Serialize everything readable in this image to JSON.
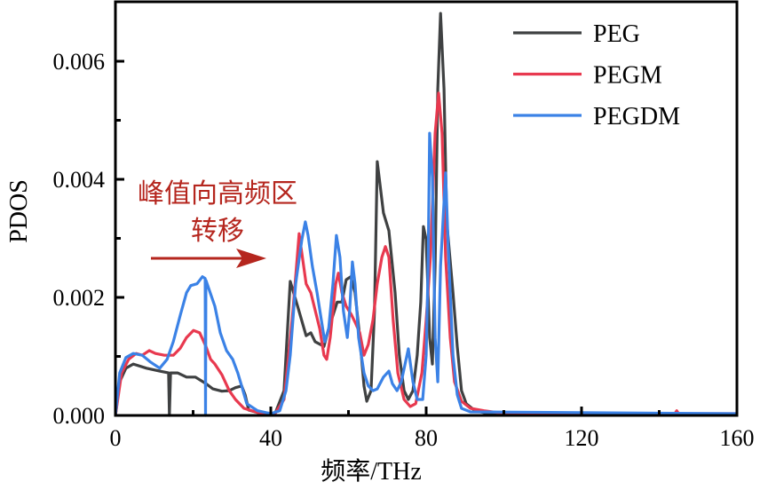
{
  "chart_data": {
    "type": "line",
    "title": "",
    "xlabel": "频率/THz",
    "ylabel": "PDOS",
    "xlim": [
      0,
      160
    ],
    "ylim": [
      0,
      0.007
    ],
    "y_values_scale": 0.001,
    "x_ticks": [
      0,
      40,
      80,
      120,
      160
    ],
    "x_tick_labels": [
      "0",
      "40",
      "80",
      "120",
      "160"
    ],
    "y_ticks": [
      0,
      0.002,
      0.004,
      0.006
    ],
    "y_tick_labels": [
      "0.000",
      "0.002",
      "0.004",
      "0.006"
    ],
    "grid": false,
    "legend_position": "top-right",
    "annotation": {
      "line1": "峰值向高频区",
      "line2": "转移",
      "arrow": "right",
      "color": "#b5261e"
    },
    "series": [
      {
        "name": "PEG",
        "color": "#3f4142",
        "x": [
          0,
          1.1,
          2.7,
          4.6,
          8.0,
          11.4,
          13.7,
          13.9,
          14.2,
          16.0,
          18.3,
          20.6,
          23.3,
          25.1,
          27.4,
          29.3,
          30.9,
          32.5,
          33.4,
          34.3,
          36.6,
          41.1,
          43.4,
          45.0,
          46.9,
          49.1,
          50.3,
          51.4,
          53.7,
          54.9,
          57.1,
          58.3,
          59.4,
          60.6,
          61.7,
          62.9,
          64.0,
          64.7,
          65.8,
          66.7,
          67.4,
          69.0,
          70.4,
          72.0,
          73.1,
          74.3,
          75.4,
          76.6,
          77.7,
          78.6,
          79.3,
          80.0,
          80.9,
          81.6,
          82.3,
          83.0,
          83.7,
          84.6,
          85.3,
          86.9,
          88.0,
          89.1,
          90.3,
          92.6,
          96.0,
          160
        ],
        "values_x1e-3": [
          0,
          0.57,
          0.8,
          0.87,
          0.8,
          0.75,
          0.72,
          0,
          0.72,
          0.72,
          0.65,
          0.65,
          0.54,
          0.45,
          0.41,
          0.42,
          0.47,
          0.5,
          0.35,
          0.09,
          0.05,
          0.03,
          0.42,
          2.27,
          1.85,
          1.35,
          1.4,
          1.25,
          1.17,
          1.47,
          1.92,
          1.92,
          2.3,
          2.35,
          2.08,
          1.32,
          0.5,
          0.24,
          0.42,
          1.77,
          4.3,
          3.43,
          3.13,
          2.08,
          1.02,
          0.42,
          0.27,
          0.42,
          1.02,
          1.92,
          3.2,
          2.98,
          1.32,
          0.87,
          2.53,
          5.53,
          6.81,
          5.53,
          3.28,
          2.08,
          1.17,
          0.42,
          0.2,
          0.08,
          0.03,
          0.02
        ]
      },
      {
        "name": "PEGM",
        "color": "#e8394f",
        "x": [
          0,
          1.6,
          3.4,
          5.3,
          6.9,
          8.7,
          10.3,
          12.6,
          14.9,
          16.7,
          18.3,
          20.1,
          21.7,
          23.3,
          24.5,
          25.6,
          27.4,
          29.3,
          30.9,
          33.1,
          36.6,
          41.1,
          43.4,
          44.6,
          45.7,
          47.3,
          49.1,
          50.3,
          52.6,
          53.7,
          54.4,
          55.3,
          56.7,
          57.4,
          58.3,
          59.4,
          60.8,
          61.7,
          62.9,
          64.0,
          65.1,
          66.3,
          67.4,
          68.6,
          69.5,
          70.4,
          71.5,
          72.7,
          74.3,
          75.9,
          77.3,
          78.9,
          80.0,
          81.1,
          82.3,
          83.2,
          84.1,
          85.0,
          86.2,
          87.3,
          89.1,
          91.4,
          94.9,
          98.3,
          144,
          144.5,
          145,
          160
        ],
        "values_x1e-3": [
          0,
          0.72,
          0.95,
          1.05,
          1.02,
          1.1,
          1.05,
          1.02,
          1.02,
          1.14,
          1.32,
          1.44,
          1.4,
          1.17,
          0.95,
          0.87,
          0.69,
          0.42,
          0.27,
          0.12,
          0.05,
          0.03,
          0.27,
          1.02,
          1.77,
          3.08,
          2.23,
          2.08,
          1.47,
          1.02,
          0.95,
          1.32,
          2.23,
          2.41,
          2.08,
          1.85,
          1.7,
          1.58,
          1.4,
          1.02,
          1.2,
          1.62,
          2.23,
          2.68,
          2.86,
          2.68,
          1.62,
          0.72,
          0.27,
          0.15,
          0.2,
          0.72,
          1.62,
          2.68,
          4.78,
          5.46,
          4.78,
          2.68,
          1.32,
          0.57,
          0.24,
          0.12,
          0.08,
          0.05,
          0.03,
          0.08,
          0.03,
          0.03
        ]
      },
      {
        "name": "PEGDM",
        "color": "#3b82e6",
        "x": [
          0,
          1.1,
          2.7,
          4.6,
          6.9,
          9.1,
          11.4,
          13.3,
          14.9,
          16.7,
          18.3,
          19.4,
          21.0,
          22.4,
          23.1,
          23.2,
          23.3,
          25.6,
          27.0,
          28.6,
          30.2,
          31.5,
          32.5,
          33.8,
          36.6,
          40.0,
          42.3,
          43.9,
          45.0,
          46.4,
          48.0,
          48.9,
          49.6,
          50.7,
          51.9,
          53.0,
          53.9,
          54.9,
          56.0,
          56.9,
          57.8,
          58.7,
          59.7,
          60.3,
          61.0,
          61.7,
          62.6,
          64.0,
          65.1,
          66.3,
          67.4,
          69.0,
          70.4,
          71.3,
          72.5,
          73.6,
          75.4,
          76.6,
          77.7,
          79.1,
          80.0,
          80.5,
          80.9,
          81.6,
          82.3,
          83.0,
          83.7,
          85.0,
          85.7,
          86.9,
          88.0,
          89.1,
          91.4,
          160
        ],
        "values_x1e-3": [
          0,
          0.72,
          0.98,
          1.05,
          1.02,
          0.9,
          0.8,
          0.95,
          1.25,
          1.7,
          2.08,
          2.2,
          2.23,
          2.35,
          2.32,
          0,
          2.29,
          1.85,
          1.4,
          1.1,
          0.95,
          0.72,
          0.5,
          0.2,
          0.08,
          0.03,
          0.08,
          0.42,
          1.02,
          2.23,
          2.98,
          3.28,
          3.05,
          2.53,
          2.08,
          1.62,
          1.25,
          1.47,
          2.23,
          3.05,
          2.68,
          1.77,
          1.32,
          1.77,
          2.6,
          2.23,
          1.32,
          0.72,
          0.5,
          0.42,
          0.45,
          0.65,
          0.75,
          0.54,
          0.42,
          0.57,
          1.13,
          0.57,
          0.27,
          0.27,
          1.02,
          2.53,
          4.78,
          4.03,
          1.32,
          0.57,
          2.53,
          4.11,
          2.83,
          1.02,
          0.35,
          0.12,
          0.06,
          0.03
        ]
      }
    ]
  }
}
